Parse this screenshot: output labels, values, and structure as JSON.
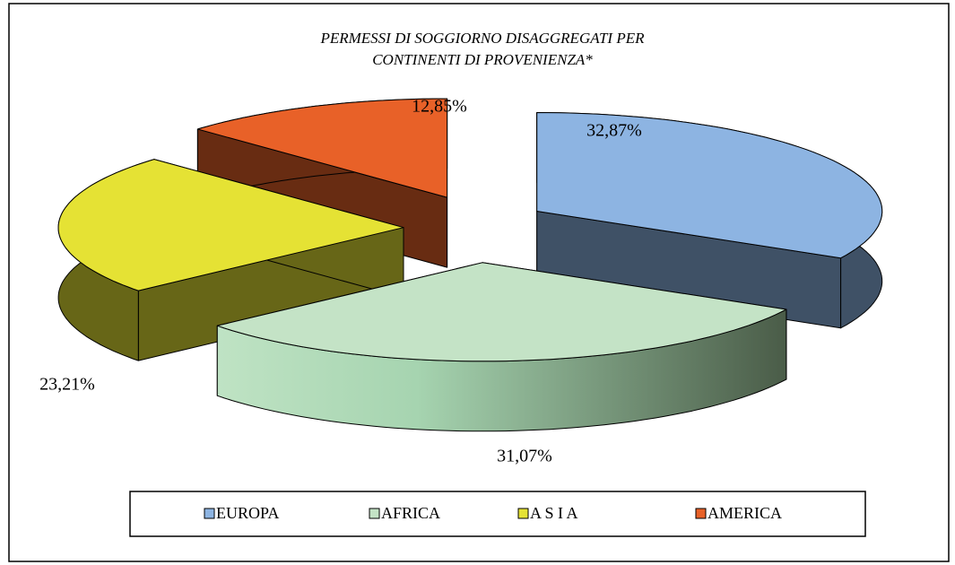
{
  "chart_data": {
    "type": "pie3d",
    "title": [
      "PERMESSI DI  SOGGIORNO   DISAGGREGATI PER",
      "CONTINENTI DI PROVENIENZA*"
    ],
    "categories": [
      "EUROPA",
      "AFRICA",
      "A  S  I  A",
      "AMERICA"
    ],
    "values": [
      32.87,
      31.07,
      23.21,
      12.85
    ],
    "value_labels": [
      "32,87%",
      "31,07%",
      "23,21%",
      "12,85%"
    ],
    "colors": [
      "#8db4e2",
      "#c4e3c6",
      "#e5e234",
      "#e86128"
    ],
    "legend": "bottom"
  }
}
